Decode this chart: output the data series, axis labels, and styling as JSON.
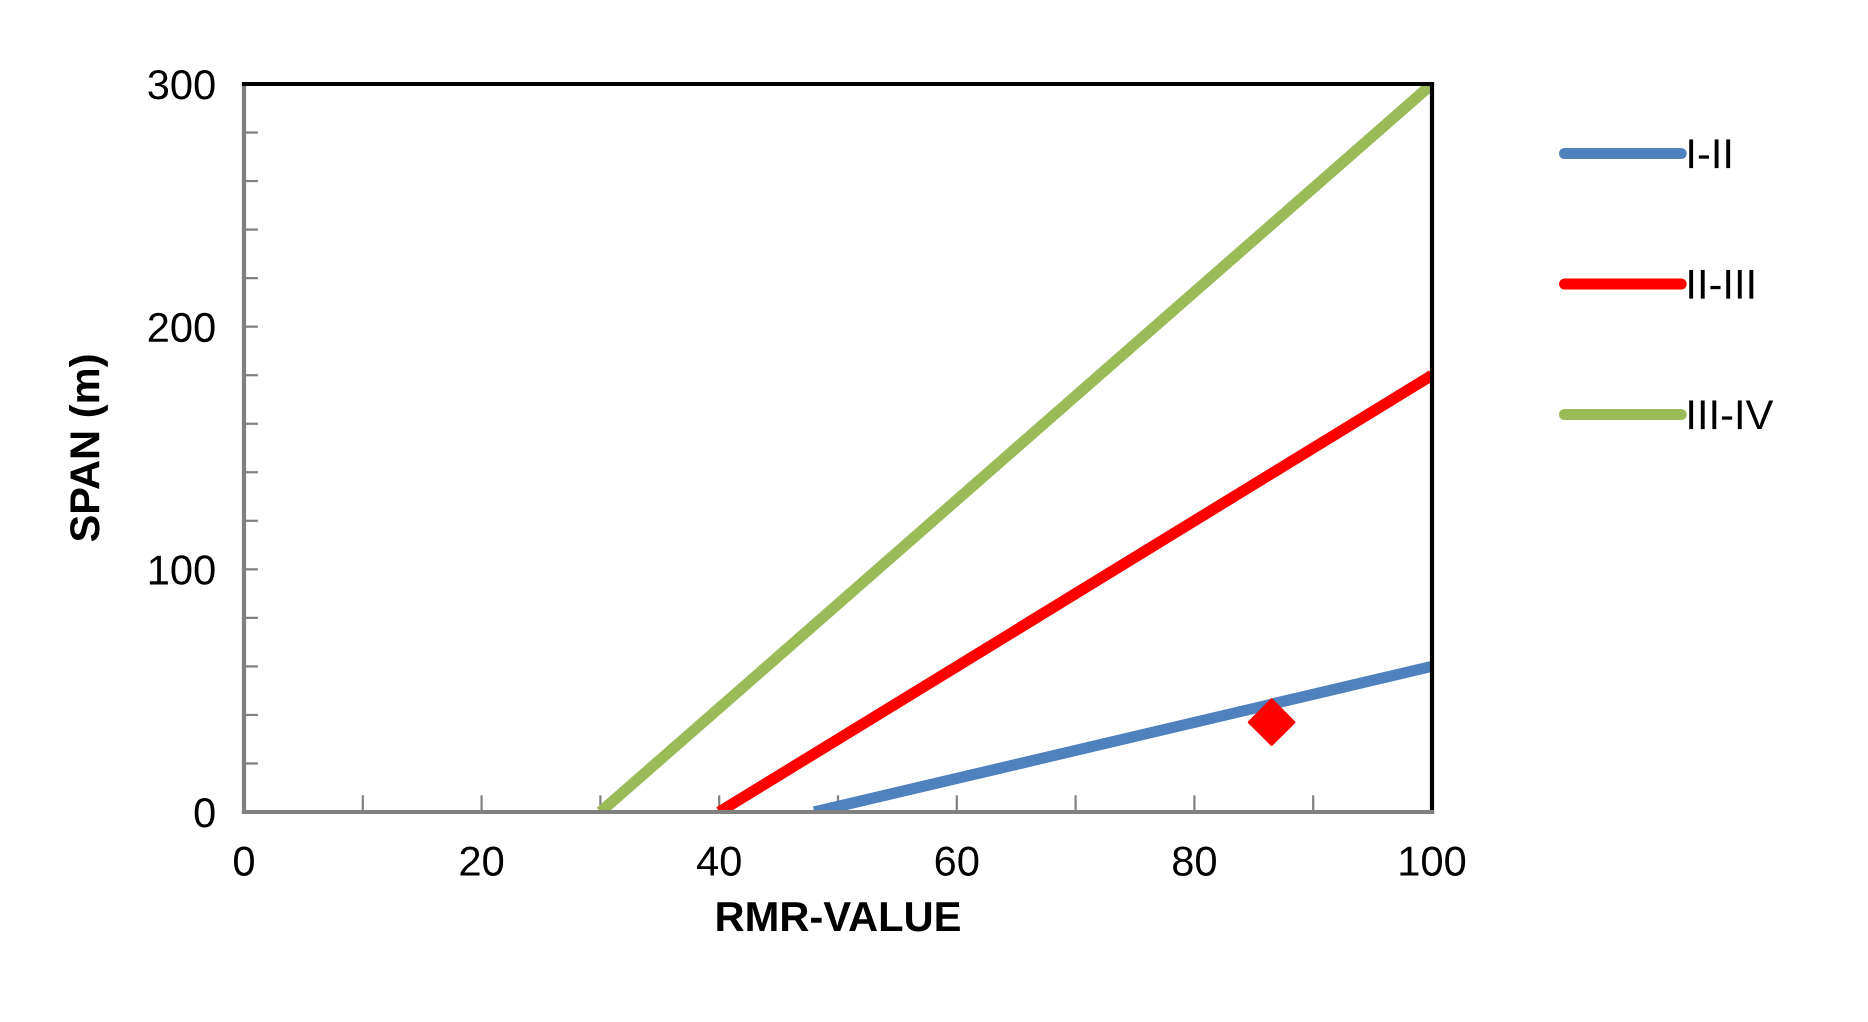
{
  "chart_data": {
    "type": "line",
    "xlabel": "RMR-VALUE",
    "ylabel": "SPAN (m)",
    "xlim": [
      0,
      100
    ],
    "ylim": [
      0,
      300
    ],
    "xticks": [
      0,
      {
        "value": 10,
        "label": null
      },
      20,
      {
        "value": 30,
        "label": null
      },
      40,
      {
        "value": 50,
        "label": null
      },
      60,
      {
        "value": 70,
        "label": null
      },
      80,
      {
        "value": 90,
        "label": null
      },
      100
    ],
    "yticks": [
      0,
      {
        "value": 20,
        "label": null
      },
      {
        "value": 40,
        "label": null
      },
      {
        "value": 60,
        "label": null
      },
      {
        "value": 80,
        "label": null
      },
      100,
      {
        "value": 120,
        "label": null
      },
      {
        "value": 140,
        "label": null
      },
      {
        "value": 160,
        "label": null
      },
      {
        "value": 180,
        "label": null
      },
      200,
      {
        "value": 220,
        "label": null
      },
      {
        "value": 240,
        "label": null
      },
      {
        "value": 260,
        "label": null
      },
      {
        "value": 280,
        "label": null
      },
      300
    ],
    "grid": false,
    "legend": "right",
    "marker": "none",
    "line_style": "solid",
    "series": [
      {
        "name": "I-II",
        "color": "#4f81bd",
        "x": [
          48,
          100
        ],
        "values": [
          0,
          60
        ]
      },
      {
        "name": "II-III",
        "color": "#ff0000",
        "x": [
          40,
          100
        ],
        "values": [
          0,
          180
        ]
      },
      {
        "name": "III-IV",
        "color": "#9bbb59",
        "x": [
          30,
          100
        ],
        "values": [
          0,
          300
        ]
      },
      {
        "type": "scatter",
        "marker": "diamond",
        "color": "#ff0000",
        "x": [
          86.5
        ],
        "values": [
          37
        ]
      }
    ]
  }
}
